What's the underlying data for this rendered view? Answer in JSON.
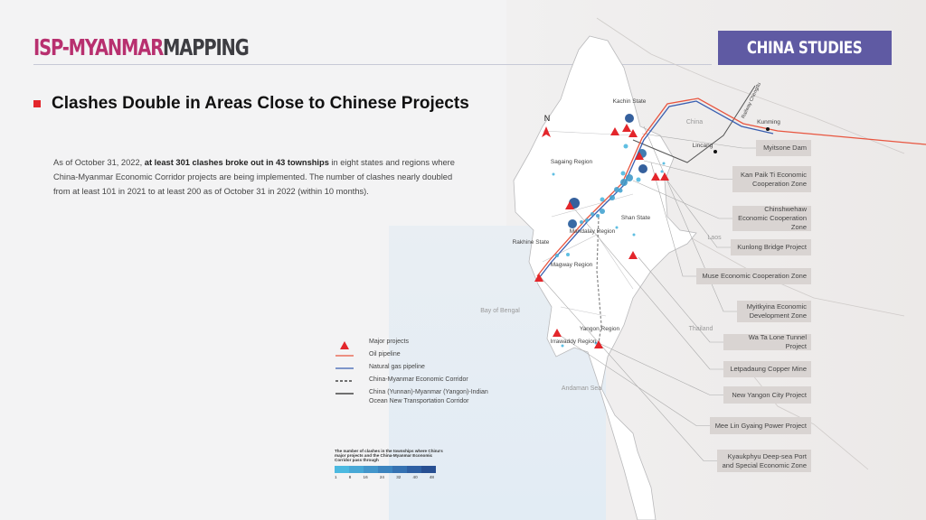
{
  "header": {
    "logo_part1": "ISP-MYANMAR",
    "logo_part2": "MAPPING",
    "badge": "CHINA STUDIES"
  },
  "title": "Clashes Double in Areas Close to Chinese Projects",
  "paragraph": {
    "p1": "As of October 31, 2022, ",
    "b1": "at least 301 clashes broke out in 43 townships",
    "p2": " in eight states and regions where China-Myanmar Economic Corridor projects are being implemented. The number of clashes nearly doubled from at least 101 in 2021 to at least 200 as of October 31 in 2022 (within 10 months)."
  },
  "map": {
    "north": "N",
    "labels": {
      "kachin": "Kachin State",
      "sagaing": "Sagaing Region",
      "shan": "Shan State",
      "mandalay": "Mandalay Region",
      "rakhine": "Rakhine State",
      "magway": "Magway Region",
      "yangon": "Yangon Region",
      "irrawaddy": "Irrawaddy Region",
      "china": "China",
      "laos": "Laos",
      "thailand": "Thailand",
      "bay": "Bay of Bengal",
      "andaman": "Andaman Sea",
      "kunming": "Kunming",
      "lincang": "Lincang",
      "railway": "Railway Chengdu"
    },
    "colors": {
      "oil": "#e8553f",
      "gas": "#3a5fb0",
      "project": "#e3262b",
      "clash_low": "#4fb8df",
      "clash_high": "#1f4f92"
    }
  },
  "projects": [
    "Myitsone Dam",
    "Kan Paik Ti Economic Cooperation Zone",
    "Chinshwehaw Economic Cooperation Zone",
    "Kunlong Bridge Project",
    "Muse Economic Cooperation Zone",
    "Myitkyina Economic Development Zone",
    "Wa Ta Lone Tunnel Project",
    "Letpadaung Copper Mine",
    "New Yangon City Project",
    "Mee Lin Gyaing Power Project",
    "Kyaukphyu Deep-sea Port and Special Economic Zone"
  ],
  "legend": {
    "items": [
      "Major projects",
      "Oil pipeline",
      "Natural gas pipeline",
      "China-Myanmar Economic Corridor",
      "China (Yunnan)-Myanmar (Yangon)-Indian Ocean New Transportation Corridor"
    ],
    "scale_title": "The number of clashes in the townships where China's major projects and the China-Myanmar Economic Corridor pass through",
    "scale_ticks": [
      "1",
      "8",
      "16",
      "24",
      "32",
      "40",
      "48"
    ],
    "scale_colors": [
      "#4cb9e0",
      "#48a8d6",
      "#4396cb",
      "#3c84bf",
      "#3572b2",
      "#2e60a3",
      "#274f92"
    ]
  }
}
